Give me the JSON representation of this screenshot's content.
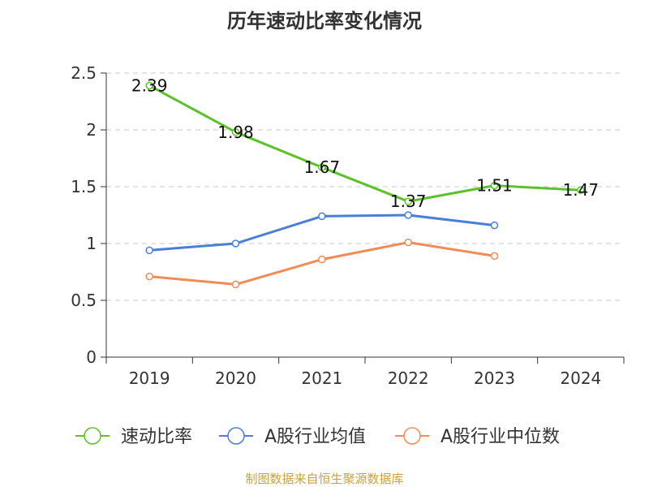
{
  "chart_data": {
    "type": "line",
    "title": "历年速动比率变化情况",
    "categories": [
      "2019",
      "2020",
      "2021",
      "2022",
      "2023",
      "2024"
    ],
    "yticks": [
      "0",
      "0.5",
      "1",
      "1.5",
      "2",
      "2.5"
    ],
    "ylim": [
      0,
      2.5
    ],
    "grid": true,
    "legend_position": "bottom",
    "series": [
      {
        "name": "速动比率",
        "color": "#5cc22a",
        "values": [
          2.39,
          1.98,
          1.67,
          1.37,
          1.51,
          1.47
        ],
        "labels": [
          "2.39",
          "1.98",
          "1.67",
          "1.37",
          "1.51",
          "1.47"
        ]
      },
      {
        "name": "A股行业均值",
        "color": "#4a7fd6",
        "values": [
          0.94,
          1.0,
          1.24,
          1.25,
          1.16,
          null
        ]
      },
      {
        "name": "A股行业中位数",
        "color": "#f08c55",
        "values": [
          0.71,
          0.64,
          0.86,
          1.01,
          0.89,
          null
        ]
      }
    ]
  },
  "footer": {
    "source": "制图数据来自恒生聚源数据库"
  }
}
